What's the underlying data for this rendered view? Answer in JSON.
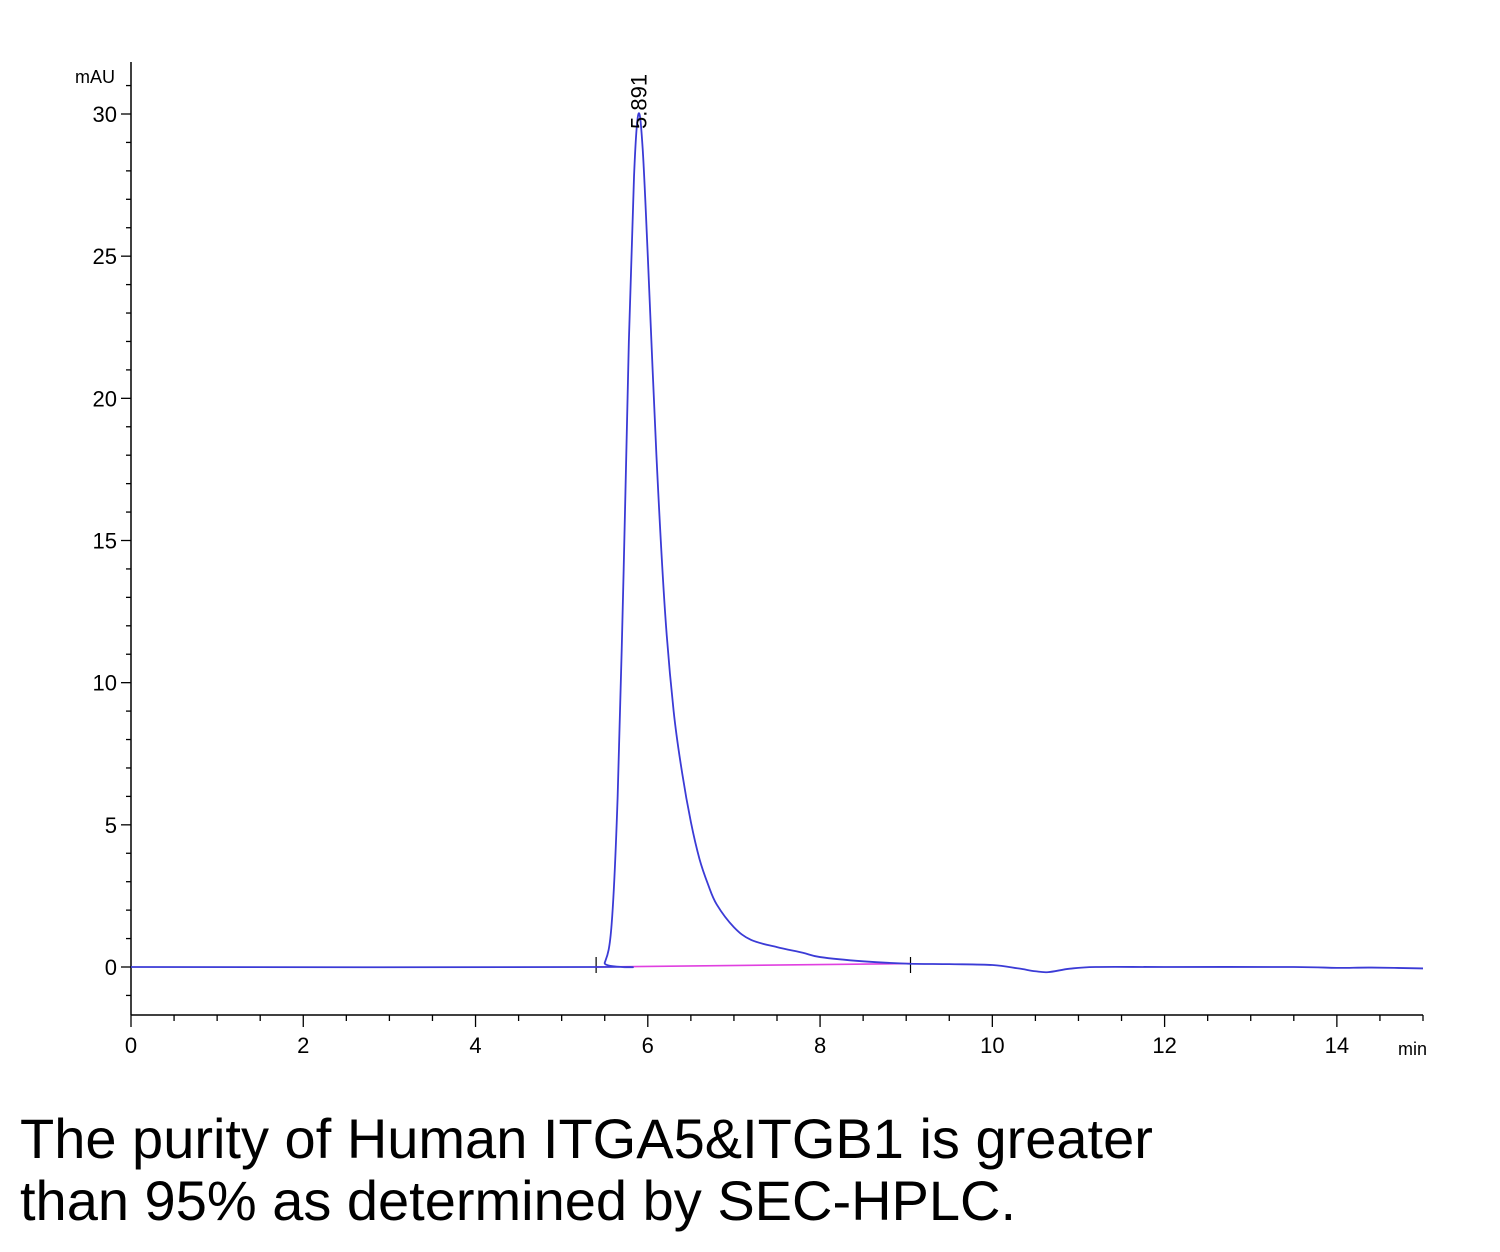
{
  "chart_data": {
    "type": "line",
    "y_unit": "mAU",
    "x_unit": "min",
    "xlim": [
      0,
      15
    ],
    "ylim": [
      -1.7,
      32
    ],
    "x_ticks": [
      0,
      2,
      4,
      6,
      8,
      10,
      12,
      14
    ],
    "y_ticks": [
      0,
      5,
      10,
      15,
      20,
      25,
      30
    ],
    "peak_annotation": {
      "x": 5.891,
      "label": "5.891"
    },
    "series": [
      {
        "color": "#3b3bd6",
        "points": [
          [
            0,
            0
          ],
          [
            5.4,
            0
          ],
          [
            5.5,
            0.15
          ],
          [
            5.58,
            1.5
          ],
          [
            5.65,
            6.0
          ],
          [
            5.72,
            14.0
          ],
          [
            5.78,
            22.0
          ],
          [
            5.84,
            27.8
          ],
          [
            5.891,
            30.0
          ],
          [
            5.94,
            28.8
          ],
          [
            6.0,
            25.0
          ],
          [
            6.1,
            18.0
          ],
          [
            6.2,
            12.5
          ],
          [
            6.3,
            9.0
          ],
          [
            6.4,
            6.8
          ],
          [
            6.5,
            5.1
          ],
          [
            6.6,
            3.8
          ],
          [
            6.7,
            2.9
          ],
          [
            6.8,
            2.2
          ],
          [
            7.0,
            1.4
          ],
          [
            7.2,
            0.95
          ],
          [
            7.5,
            0.7
          ],
          [
            7.8,
            0.5
          ],
          [
            8.0,
            0.35
          ],
          [
            8.5,
            0.2
          ],
          [
            9.0,
            0.12
          ],
          [
            9.5,
            0.1
          ],
          [
            10.0,
            0.07
          ],
          [
            10.3,
            -0.05
          ],
          [
            10.5,
            -0.15
          ],
          [
            10.65,
            -0.18
          ],
          [
            10.9,
            -0.06
          ],
          [
            11.2,
            0.0
          ],
          [
            12.0,
            0.0
          ],
          [
            13.5,
            0.0
          ],
          [
            14.0,
            -0.03
          ],
          [
            14.4,
            -0.02
          ],
          [
            15.0,
            -0.05
          ]
        ]
      }
    ],
    "baselines": [
      {
        "color": "#e040e0",
        "points": [
          [
            5.4,
            0
          ],
          [
            9.05,
            0.12
          ]
        ]
      }
    ],
    "integration_markers": [
      5.4,
      9.05
    ]
  },
  "caption": {
    "line1": "The purity of Human ITGA5&ITGB1 is greater",
    "line2": "than 95% as determined by SEC-HPLC."
  }
}
